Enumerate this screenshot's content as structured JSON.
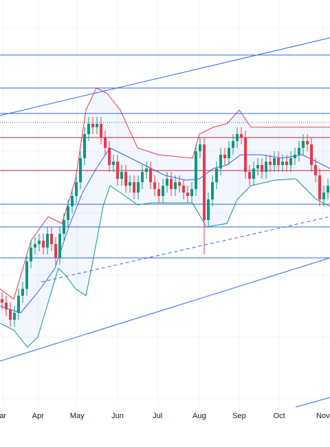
{
  "chart_data": {
    "type": "candlestick",
    "x": [
      0,
      1,
      2,
      3,
      4,
      5,
      6,
      7,
      8,
      9,
      10,
      11,
      12,
      13,
      14,
      15,
      16,
      17,
      18,
      19,
      20,
      21,
      22,
      23,
      24,
      25,
      26,
      27,
      28,
      29,
      30,
      31,
      32,
      33,
      34,
      35,
      36,
      37,
      38,
      39,
      40,
      41,
      42,
      43,
      44,
      45,
      46,
      47,
      48,
      49,
      50,
      51,
      52,
      53,
      54,
      55,
      56,
      57,
      58,
      59,
      60,
      61,
      62,
      63,
      64,
      65,
      66,
      67,
      68,
      69,
      70,
      71,
      72,
      73,
      74,
      75,
      76,
      77,
      78,
      79
    ],
    "open": [
      31,
      30,
      28,
      25,
      27,
      32,
      34,
      42,
      46,
      47,
      48,
      46,
      50,
      47,
      43,
      50,
      54,
      58,
      61,
      65,
      72,
      79,
      82,
      81,
      82,
      78,
      75,
      70,
      71,
      66,
      68,
      64,
      65,
      62,
      65,
      68,
      69,
      65,
      63,
      61,
      64,
      66,
      63,
      65,
      64,
      62,
      61,
      63,
      74,
      76,
      54,
      60,
      65,
      69,
      73,
      72,
      75,
      77,
      79,
      78,
      68,
      66,
      69,
      70,
      68,
      71,
      70,
      72,
      70,
      71,
      70,
      72,
      73,
      75,
      77,
      76,
      70,
      67,
      60,
      62
    ],
    "high": [
      33,
      32,
      30,
      29,
      34,
      36,
      44,
      48,
      49,
      50,
      50,
      52,
      52,
      49,
      52,
      56,
      60,
      63,
      67,
      74,
      81,
      84,
      84,
      84,
      84,
      80,
      77,
      73,
      73,
      70,
      70,
      67,
      67,
      67,
      70,
      71,
      71,
      67,
      65,
      66,
      68,
      68,
      67,
      67,
      66,
      64,
      65,
      76,
      78,
      78,
      62,
      67,
      71,
      75,
      75,
      77,
      79,
      81,
      81,
      80,
      70,
      71,
      72,
      72,
      73,
      73,
      74,
      74,
      73,
      73,
      74,
      75,
      77,
      79,
      79,
      78,
      72,
      69,
      64,
      66
    ],
    "low": [
      28,
      26,
      23,
      23,
      25,
      30,
      32,
      40,
      44,
      45,
      44,
      44,
      45,
      41,
      41,
      48,
      52,
      56,
      59,
      63,
      70,
      77,
      79,
      79,
      76,
      73,
      68,
      68,
      64,
      64,
      62,
      62,
      60,
      60,
      63,
      66,
      63,
      61,
      59,
      59,
      62,
      61,
      61,
      62,
      60,
      59,
      59,
      61,
      72,
      44,
      52,
      58,
      63,
      67,
      70,
      70,
      73,
      75,
      76,
      66,
      64,
      64,
      67,
      66,
      66,
      68,
      68,
      68,
      68,
      68,
      68,
      70,
      71,
      73,
      74,
      68,
      65,
      58,
      58,
      60
    ],
    "close": [
      30,
      28,
      25,
      27,
      32,
      34,
      42,
      46,
      47,
      48,
      46,
      50,
      47,
      43,
      50,
      54,
      58,
      61,
      65,
      72,
      79,
      82,
      81,
      82,
      78,
      75,
      70,
      71,
      66,
      68,
      64,
      65,
      62,
      65,
      68,
      69,
      65,
      63,
      61,
      64,
      66,
      63,
      65,
      64,
      62,
      61,
      63,
      74,
      76,
      54,
      60,
      65,
      69,
      73,
      72,
      75,
      77,
      79,
      78,
      68,
      66,
      69,
      70,
      68,
      71,
      70,
      72,
      70,
      71,
      70,
      72,
      73,
      75,
      77,
      76,
      70,
      67,
      60,
      62,
      64
    ],
    "up_color": "#089981",
    "down_color": "#f23645",
    "xlim": [
      -0.5,
      79.5
    ],
    "ylim": [
      0,
      118
    ],
    "xticks": [
      {
        "value": 0.2,
        "label": "ar"
      },
      {
        "value": 8.7,
        "label": "Apr"
      },
      {
        "value": 18.2,
        "label": "May"
      },
      {
        "value": 28,
        "label": "Jun"
      },
      {
        "value": 37.7,
        "label": "Jul"
      },
      {
        "value": 47.8,
        "label": "Aug"
      },
      {
        "value": 57.5,
        "label": "Sep"
      },
      {
        "value": 67.2,
        "label": "Oct"
      },
      {
        "value": 77.8,
        "label": "Nov"
      }
    ],
    "grid": true
  }
}
